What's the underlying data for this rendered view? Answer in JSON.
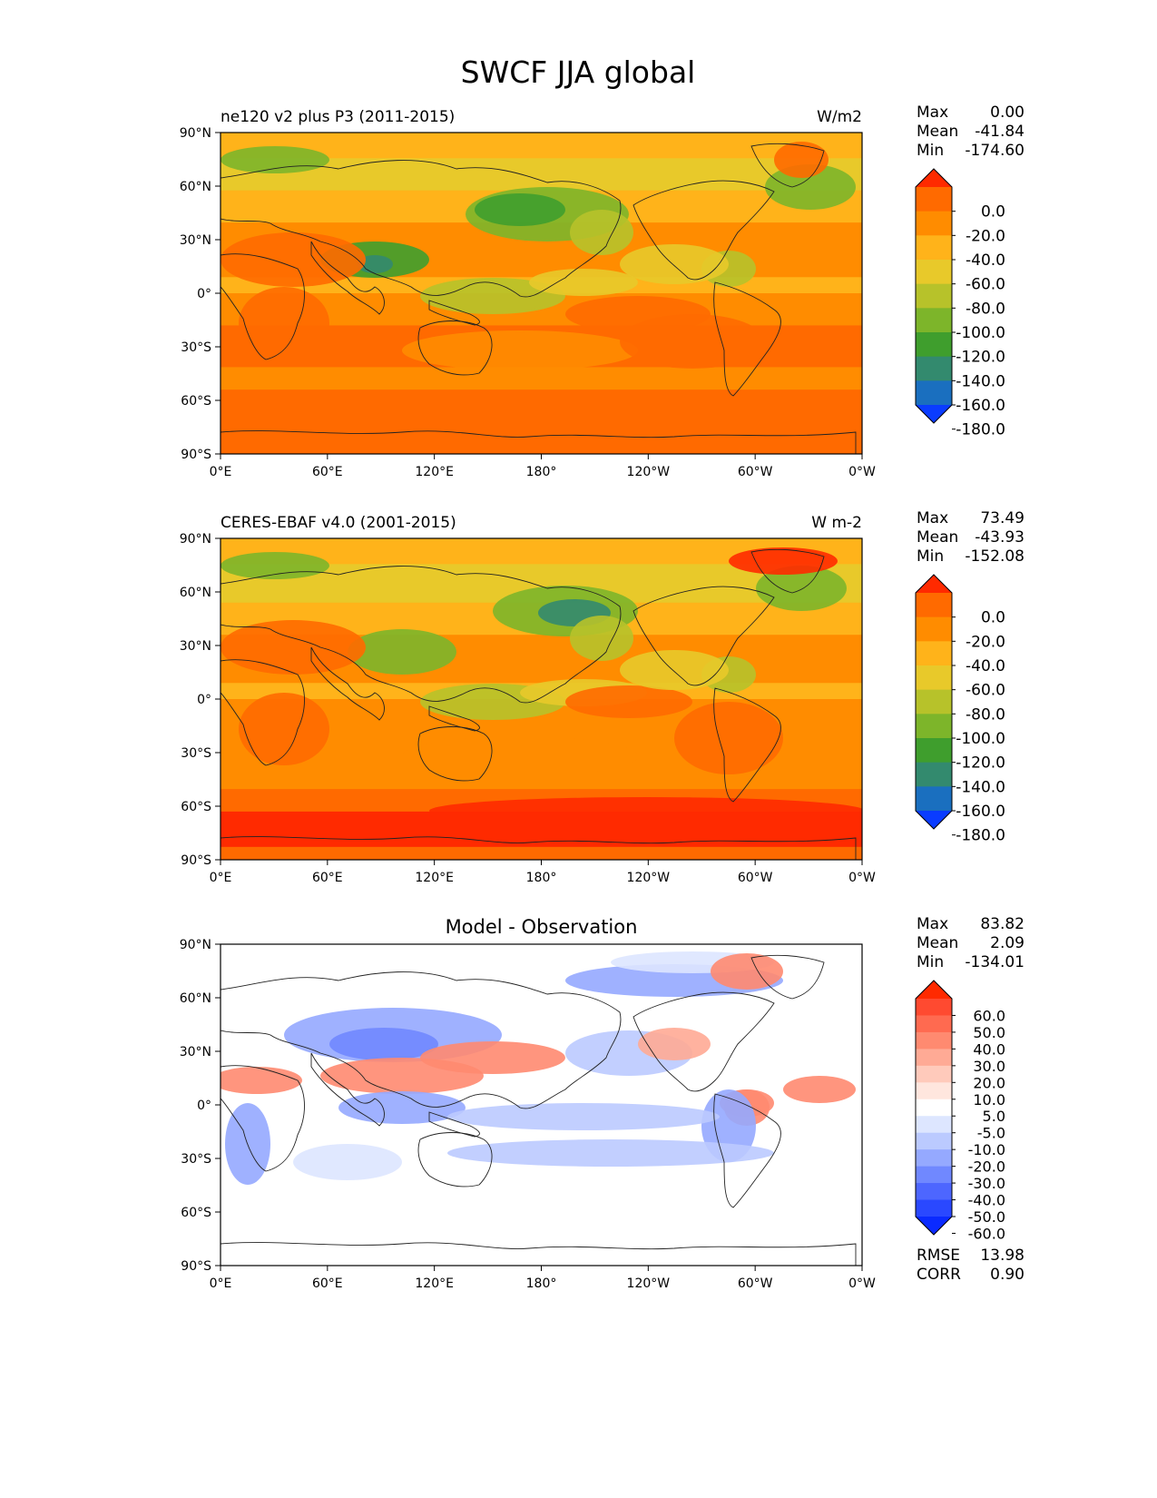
{
  "figure": {
    "title": "SWCF JJA global"
  },
  "axes": {
    "lat_labels": [
      "90°N",
      "60°N",
      "30°N",
      "0°",
      "30°S",
      "60°S",
      "90°S"
    ],
    "lon_labels": [
      "0°E",
      "60°E",
      "120°E",
      "180°",
      "120°W",
      "60°W",
      "0°W"
    ]
  },
  "panels": [
    {
      "id": "model",
      "left_title": "ne120 v2 plus P3 (2011-2015)",
      "center_title": "",
      "right_title": "W/m2",
      "stats": [
        {
          "label": "Max",
          "value": "0.00"
        },
        {
          "label": "Mean",
          "value": "-41.84"
        },
        {
          "label": "Min",
          "value": "-174.60"
        }
      ],
      "colorbar_labels": [
        "0.0",
        "-20.0",
        "-40.0",
        "-60.0",
        "-80.0",
        "-100.0",
        "-120.0",
        "-140.0",
        "-160.0",
        "-180.0"
      ],
      "colorbar_colors": [
        "#ff2a00",
        "#ff6a00",
        "#ff8c00",
        "#ffb31a",
        "#e8c92a",
        "#b7c22a",
        "#7db52a",
        "#3f9e2d",
        "#338a6e",
        "#1a6fbf",
        "#0a3cff"
      ]
    },
    {
      "id": "obs",
      "left_title": "CERES-EBAF v4.0 (2001-2015)",
      "center_title": "",
      "right_title": "W m-2",
      "stats": [
        {
          "label": "Max",
          "value": "73.49"
        },
        {
          "label": "Mean",
          "value": "-43.93"
        },
        {
          "label": "Min",
          "value": "-152.08"
        }
      ],
      "colorbar_labels": [
        "0.0",
        "-20.0",
        "-40.0",
        "-60.0",
        "-80.0",
        "-100.0",
        "-120.0",
        "-140.0",
        "-160.0",
        "-180.0"
      ],
      "colorbar_colors": [
        "#ff2a00",
        "#ff6a00",
        "#ff8c00",
        "#ffb31a",
        "#e8c92a",
        "#b7c22a",
        "#7db52a",
        "#3f9e2d",
        "#338a6e",
        "#1a6fbf",
        "#0a3cff"
      ]
    },
    {
      "id": "diff",
      "left_title": "",
      "center_title": "Model - Observation",
      "right_title": "",
      "stats": [
        {
          "label": "Max",
          "value": "83.82"
        },
        {
          "label": "Mean",
          "value": "2.09"
        },
        {
          "label": "Min",
          "value": "-134.01"
        }
      ],
      "colorbar_labels": [
        "60.0",
        "50.0",
        "40.0",
        "30.0",
        "20.0",
        "10.0",
        "5.0",
        "-5.0",
        "-10.0",
        "-20.0",
        "-30.0",
        "-40.0",
        "-50.0",
        "-60.0"
      ],
      "colorbar_colors": [
        "#ff2a00",
        "#ff4a30",
        "#ff6a50",
        "#ff8a70",
        "#ffaa95",
        "#ffcabb",
        "#ffe6de",
        "#ffffff",
        "#dde6ff",
        "#bbcaff",
        "#95a9ff",
        "#7088ff",
        "#4d66ff",
        "#2a48ff",
        "#0a2aff"
      ],
      "bottom_stats": [
        {
          "label": "RMSE",
          "value": "13.98"
        },
        {
          "label": "CORR",
          "value": "0.90"
        }
      ]
    }
  ]
}
